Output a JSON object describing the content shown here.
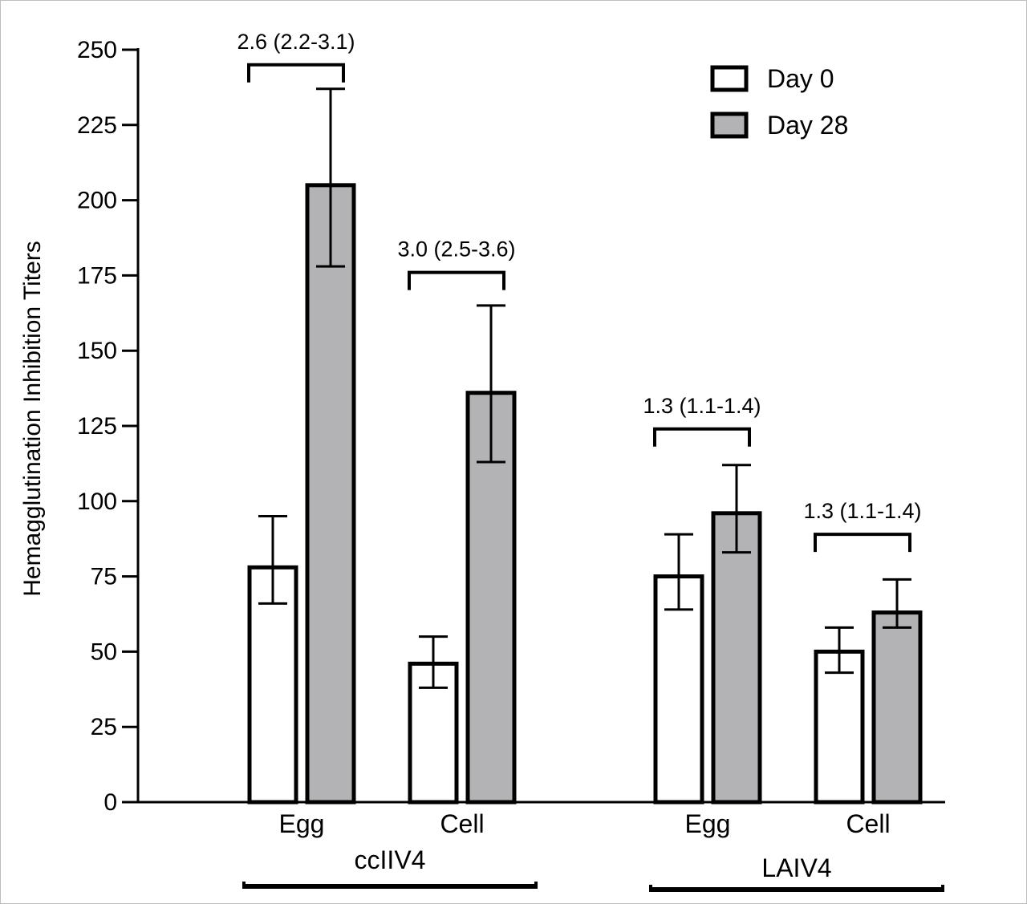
{
  "chart_data": {
    "type": "bar",
    "ylabel": "Hemagglutination Inhibition Titers",
    "ylim": [
      0,
      250
    ],
    "yticks": [
      0,
      25,
      50,
      75,
      100,
      125,
      150,
      175,
      200,
      225,
      250
    ],
    "grid": false,
    "legend_position": "top-right",
    "groups": [
      "ccIIV4",
      "LAIV4"
    ],
    "categories": [
      "Egg",
      "Cell",
      "Egg",
      "Cell"
    ],
    "category_group": [
      0,
      0,
      1,
      1
    ],
    "series": [
      {
        "name": "Day 0",
        "color": "#ffffff",
        "values": [
          78,
          46,
          75,
          50
        ],
        "err_low": [
          66,
          38,
          64,
          43
        ],
        "err_high": [
          95,
          55,
          89,
          58
        ]
      },
      {
        "name": "Day 28",
        "color": "#b3b3b6",
        "values": [
          205,
          136,
          96,
          63
        ],
        "err_low": [
          178,
          113,
          83,
          58
        ],
        "err_high": [
          237,
          165,
          112,
          74
        ]
      }
    ],
    "annotations": [
      {
        "text": "2.6 (2.2-3.1)",
        "category": 0,
        "y": 245
      },
      {
        "text": "3.0 (2.5-3.6)",
        "category": 1,
        "y": 176
      },
      {
        "text": "1.3 (1.1-1.4)",
        "category": 2,
        "y": 124
      },
      {
        "text": "1.3 (1.1-1.4)",
        "category": 3,
        "y": 89
      }
    ]
  }
}
